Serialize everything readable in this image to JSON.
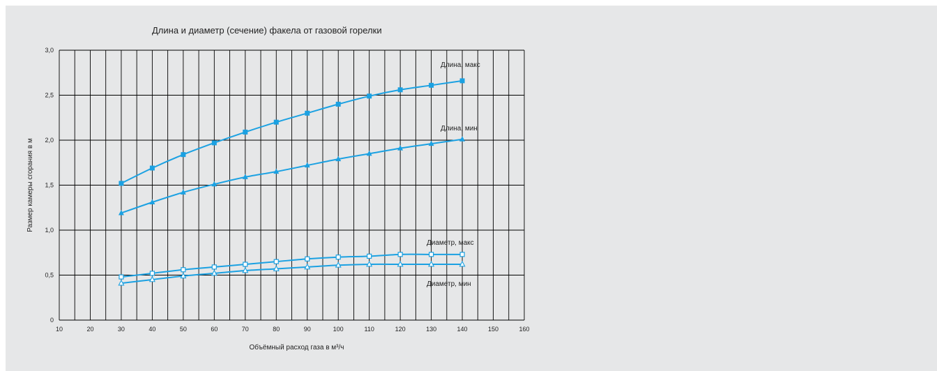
{
  "chart_data": {
    "type": "line",
    "title": "Длина и диаметр (сечение) факела от газовой горелки",
    "xlabel": "Объёмный расход газа в м³/ч",
    "ylabel": "Размер камеры сгорания в м",
    "xlim": [
      10,
      160
    ],
    "ylim": [
      0,
      3.0
    ],
    "x_ticks": [
      "10",
      "20",
      "30",
      "40",
      "50",
      "60",
      "70",
      "80",
      "90",
      "100",
      "110",
      "120",
      "130",
      "140",
      "150",
      "160"
    ],
    "y_ticks": [
      "0",
      "0,5",
      "1,0",
      "1,5",
      "2,0",
      "2,5",
      "3,0"
    ],
    "grid": true,
    "x": [
      30,
      40,
      50,
      60,
      70,
      80,
      90,
      100,
      110,
      120,
      130,
      140
    ],
    "series": [
      {
        "name": "Длина, макс",
        "marker": "square-filled",
        "values": [
          1.52,
          1.69,
          1.84,
          1.97,
          2.09,
          2.2,
          2.3,
          2.4,
          2.49,
          2.56,
          2.61,
          2.66
        ]
      },
      {
        "name": "Длина, мин",
        "marker": "triangle-filled",
        "values": [
          1.19,
          1.31,
          1.42,
          1.51,
          1.59,
          1.65,
          1.72,
          1.79,
          1.85,
          1.91,
          1.96,
          2.01
        ]
      },
      {
        "name": "Диаметр, макс",
        "marker": "square-open",
        "values": [
          0.48,
          0.52,
          0.56,
          0.59,
          0.62,
          0.65,
          0.68,
          0.7,
          0.71,
          0.73,
          0.73,
          0.73
        ]
      },
      {
        "name": "Диаметр, мин",
        "marker": "triangle-open",
        "values": [
          0.41,
          0.45,
          0.49,
          0.52,
          0.55,
          0.57,
          0.59,
          0.61,
          0.62,
          0.62,
          0.62,
          0.62
        ]
      }
    ],
    "colors": {
      "line": "#1ba1e2",
      "grid": "#000000",
      "background": "#e6e7e8"
    }
  }
}
